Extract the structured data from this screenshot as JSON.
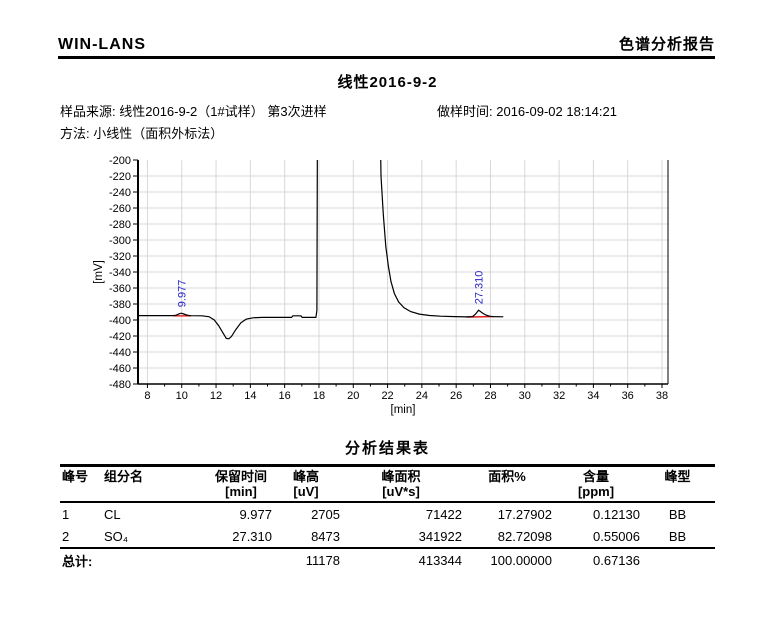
{
  "header": {
    "app_name": "WIN-LANS",
    "report_title": "色谱分析报告"
  },
  "sample_title": "线性2016-9-2",
  "info": {
    "source_label": "样品来源: ",
    "source_value": "线性2016-9-2（1#试样） 第3次进样",
    "time_label": "做样时间: ",
    "time_value": "2016-09-02 18:14:21",
    "method_label": "方法: ",
    "method_value": "小线性（面积外标法）"
  },
  "chart_data": {
    "type": "line",
    "title": "",
    "xlabel": "[min]",
    "ylabel": "[mV]",
    "xlim": [
      7.45,
      38.35
    ],
    "ylim": [
      -480,
      -200
    ],
    "xticks": [
      8,
      10,
      12,
      14,
      16,
      18,
      20,
      22,
      24,
      26,
      28,
      30,
      32,
      34,
      36,
      38
    ],
    "yticks": [
      -200,
      -220,
      -240,
      -260,
      -280,
      -300,
      -320,
      -340,
      -360,
      -380,
      -400,
      -420,
      -440,
      -460,
      -480
    ],
    "grid": true,
    "legend": "none",
    "colors": {
      "trace": "#000000",
      "grid": "#d8d8d8",
      "axis": "#000000",
      "peak_label": "#2525cd",
      "integration_baseline": "#e00000"
    },
    "peaks": [
      {
        "rt": 9.977,
        "label": "9.977",
        "apex_mv": -391.5
      },
      {
        "rt": 27.31,
        "label": "27.310",
        "apex_mv": -387.8
      }
    ],
    "baseline_segments": [
      [
        [
          9.5,
          -394.8
        ],
        [
          10.55,
          -394.8
        ]
      ],
      [
        [
          26.6,
          -396.3
        ],
        [
          28.18,
          -395.8
        ]
      ]
    ],
    "trace": [
      [
        7.45,
        -394.5
      ],
      [
        9.5,
        -394.5
      ],
      [
        9.68,
        -394.0
      ],
      [
        9.85,
        -392.3
      ],
      [
        9.977,
        -391.5
      ],
      [
        10.12,
        -392.5
      ],
      [
        10.3,
        -393.9
      ],
      [
        10.5,
        -394.6
      ],
      [
        11.2,
        -394.8
      ],
      [
        11.6,
        -396.0
      ],
      [
        11.9,
        -400.0
      ],
      [
        12.15,
        -407.0
      ],
      [
        12.4,
        -416.0
      ],
      [
        12.6,
        -423.0
      ],
      [
        12.75,
        -423.5
      ],
      [
        12.9,
        -420.5
      ],
      [
        13.15,
        -412.0
      ],
      [
        13.45,
        -403.5
      ],
      [
        13.75,
        -399.0
      ],
      [
        14.15,
        -397.3
      ],
      [
        14.7,
        -396.8
      ],
      [
        15.6,
        -396.8
      ],
      [
        16.4,
        -396.8
      ],
      [
        16.48,
        -394.8
      ],
      [
        16.95,
        -394.8
      ],
      [
        17.02,
        -396.8
      ],
      [
        17.82,
        -396.8
      ],
      [
        17.88,
        -388.0
      ],
      [
        17.92,
        -80.0
      ],
      [
        21.52,
        -80.0
      ],
      [
        21.62,
        -220.0
      ],
      [
        21.75,
        -268.0
      ],
      [
        21.9,
        -308.0
      ],
      [
        22.05,
        -333.0
      ],
      [
        22.2,
        -352.0
      ],
      [
        22.4,
        -367.0
      ],
      [
        22.65,
        -377.5
      ],
      [
        22.95,
        -384.5
      ],
      [
        23.35,
        -389.5
      ],
      [
        23.85,
        -392.6
      ],
      [
        24.45,
        -394.4
      ],
      [
        25.1,
        -395.3
      ],
      [
        25.9,
        -395.8
      ],
      [
        26.6,
        -396.1
      ],
      [
        26.95,
        -395.7
      ],
      [
        27.12,
        -392.8
      ],
      [
        27.31,
        -387.8
      ],
      [
        27.5,
        -390.8
      ],
      [
        27.72,
        -393.8
      ],
      [
        27.95,
        -395.3
      ],
      [
        28.15,
        -395.8
      ],
      [
        28.75,
        -396.0
      ]
    ]
  },
  "results": {
    "title": "分析结果表",
    "columns": [
      {
        "name": "峰号",
        "unit": ""
      },
      {
        "name": "组分名",
        "unit": ""
      },
      {
        "name": "保留时间",
        "unit": "[min]"
      },
      {
        "name": "峰高",
        "unit": "[uV]"
      },
      {
        "name": "峰面积",
        "unit": "[uV*s]"
      },
      {
        "name": "面积%",
        "unit": ""
      },
      {
        "name": "含量",
        "unit": "[ppm]"
      },
      {
        "name": "峰型",
        "unit": ""
      }
    ],
    "rows": [
      [
        "1",
        "CL",
        "9.977",
        "2705",
        "71422",
        "17.27902",
        "0.12130",
        "BB"
      ],
      [
        "2",
        "SO₄",
        "27.310",
        "8473",
        "341922",
        "82.72098",
        "0.55006",
        "BB"
      ]
    ],
    "total_row": [
      "总计:",
      "",
      "",
      "11178",
      "413344",
      "100.00000",
      "0.67136",
      ""
    ]
  }
}
